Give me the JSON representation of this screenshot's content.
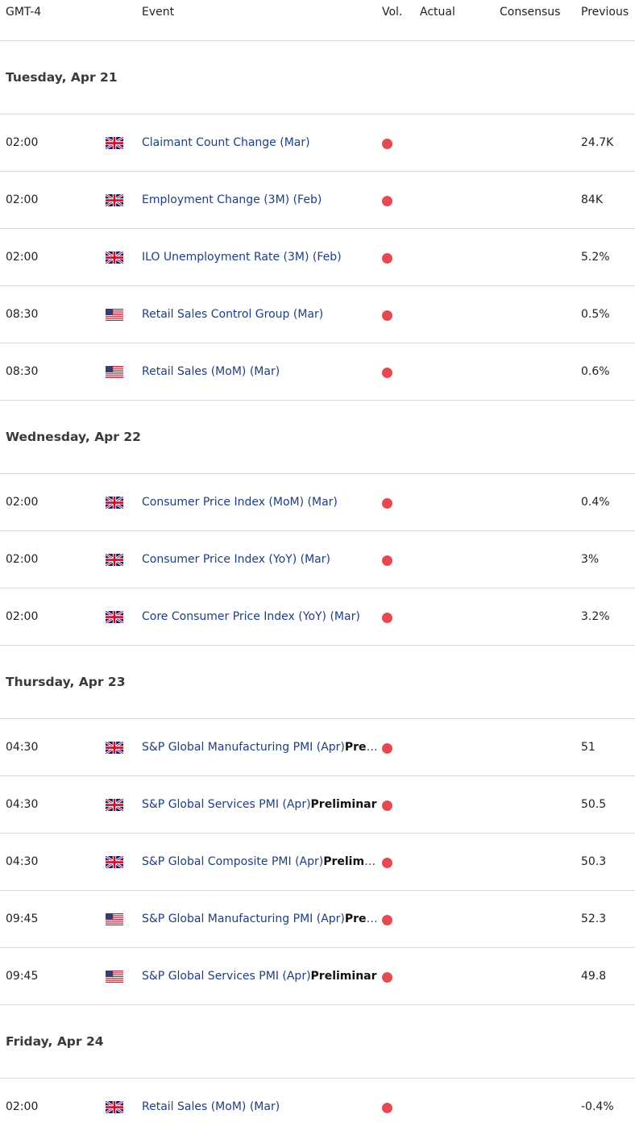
{
  "header": {
    "timezone": "GMT-4",
    "event": "Event",
    "vol": "Vol.",
    "actual": "Actual",
    "consensus": "Consensus",
    "previous": "Previous"
  },
  "colors": {
    "volatility_high": "#e34b53",
    "event_text": "#1d3e86"
  },
  "days": [
    {
      "label": "Tuesday, Apr 21",
      "events": [
        {
          "time": "02:00",
          "country": "uk-flag-icon",
          "name": "Claimant Count Change (Mar)",
          "suffix": "",
          "previous": "24.7K"
        },
        {
          "time": "02:00",
          "country": "uk-flag-icon",
          "name": "Employment Change (3M) (Feb)",
          "suffix": "",
          "previous": "84K"
        },
        {
          "time": "02:00",
          "country": "uk-flag-icon",
          "name": "ILO Unemployment Rate (3M) (Feb)",
          "suffix": "",
          "previous": "5.2%"
        },
        {
          "time": "08:30",
          "country": "us-flag-icon",
          "name": "Retail Sales Control Group (Mar)",
          "suffix": "",
          "previous": "0.5%"
        },
        {
          "time": "08:30",
          "country": "us-flag-icon",
          "name": "Retail Sales (MoM) (Mar)",
          "suffix": "",
          "previous": "0.6%"
        }
      ]
    },
    {
      "label": "Wednesday, Apr 22",
      "events": [
        {
          "time": "02:00",
          "country": "uk-flag-icon",
          "name": "Consumer Price Index (MoM) (Mar)",
          "suffix": "",
          "previous": "0.4%"
        },
        {
          "time": "02:00",
          "country": "uk-flag-icon",
          "name": "Consumer Price Index (YoY) (Mar)",
          "suffix": "",
          "previous": "3%"
        },
        {
          "time": "02:00",
          "country": "uk-flag-icon",
          "name": "Core Consumer Price Index (YoY) (Mar)",
          "suffix": "",
          "previous": "3.2%"
        }
      ]
    },
    {
      "label": "Thursday, Apr 23",
      "events": [
        {
          "time": "04:30",
          "country": "uk-flag-icon",
          "name": "S&P Global Manufacturing PMI (Apr)",
          "suffix": "Preliminar",
          "previous": "51"
        },
        {
          "time": "04:30",
          "country": "uk-flag-icon",
          "name": "S&P Global Services PMI (Apr)",
          "suffix": "Preliminar",
          "previous": "50.5"
        },
        {
          "time": "04:30",
          "country": "uk-flag-icon",
          "name": "S&P Global Composite PMI (Apr)",
          "suffix": "Preliminar",
          "previous": "50.3"
        },
        {
          "time": "09:45",
          "country": "us-flag-icon",
          "name": "S&P Global Manufacturing PMI (Apr)",
          "suffix": "Preliminar",
          "previous": "52.3"
        },
        {
          "time": "09:45",
          "country": "us-flag-icon",
          "name": "S&P Global Services PMI (Apr)",
          "suffix": "Preliminar",
          "previous": "49.8"
        }
      ]
    },
    {
      "label": "Friday, Apr 24",
      "events": [
        {
          "time": "02:00",
          "country": "uk-flag-icon",
          "name": "Retail Sales (MoM) (Mar)",
          "suffix": "",
          "previous": "-0.4%"
        }
      ]
    }
  ]
}
